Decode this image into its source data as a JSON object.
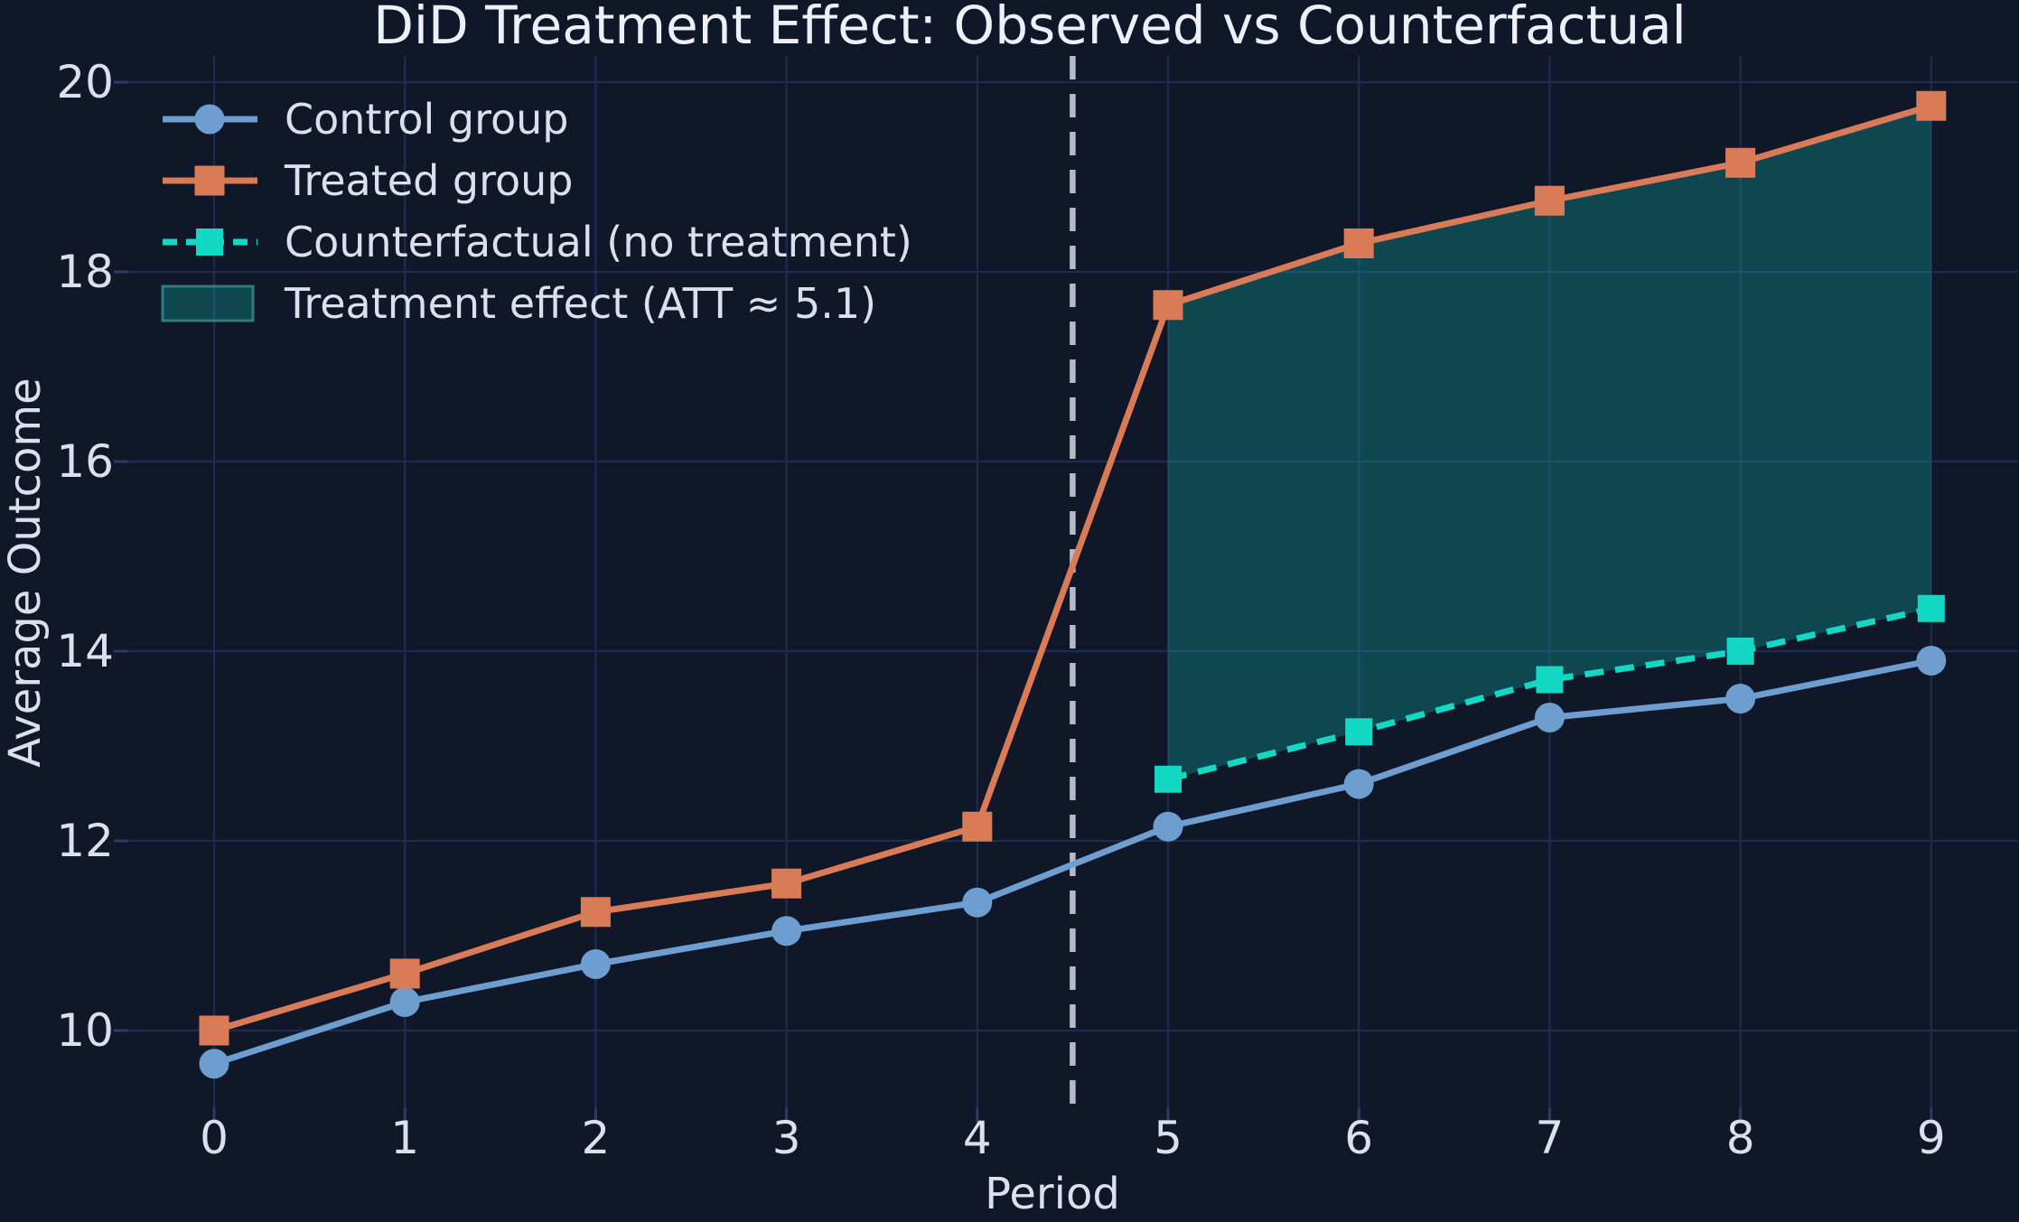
{
  "chart_data": {
    "type": "line",
    "title": "DiD Treatment Effect: Observed vs Counterfactual",
    "xlabel": "Period",
    "ylabel": "Average Outcome",
    "x": [
      0,
      1,
      2,
      3,
      4,
      5,
      6,
      7,
      8,
      9
    ],
    "x_ticks": [
      "0",
      "1",
      "2",
      "3",
      "4",
      "5",
      "6",
      "7",
      "8",
      "9"
    ],
    "y_ticks": [
      10,
      12,
      14,
      16,
      18,
      20
    ],
    "xlim": [
      -0.45,
      9.45
    ],
    "ylim": [
      9.15,
      20.25
    ],
    "grid": true,
    "legend_position": "upper-left",
    "series": [
      {
        "key": "control",
        "name": "Control group",
        "color": "#6e9ecf",
        "marker": "circle",
        "line_style": "solid",
        "values": [
          9.65,
          10.3,
          10.7,
          11.05,
          11.35,
          12.15,
          12.6,
          13.3,
          13.5,
          13.9
        ]
      },
      {
        "key": "treated",
        "name": "Treated group",
        "color": "#d97b57",
        "marker": "square",
        "line_style": "solid",
        "values": [
          10.0,
          10.6,
          11.25,
          11.55,
          12.15,
          17.65,
          18.3,
          18.75,
          19.15,
          19.75
        ]
      },
      {
        "key": "counterfactual",
        "name": "Counterfactual (no treatment)",
        "color": "#13d9c4",
        "marker": "square",
        "line_style": "dashed",
        "values": [
          null,
          null,
          null,
          null,
          null,
          12.65,
          13.15,
          13.7,
          14.0,
          14.45
        ]
      }
    ],
    "treatment_effect": {
      "label": "Treatment effect (ATT ≈ 5.1)",
      "att": 5.1,
      "from_period": 5,
      "to_period": 9,
      "between": [
        "treated",
        "counterfactual"
      ],
      "fill": "rgba(16,158,152,0.36)",
      "edge": "#2e7d7b"
    },
    "treatment_start_line": {
      "x": 4.5,
      "color": "#b6bac6",
      "style": "dashed"
    },
    "colors": {
      "background": "#0f1729",
      "grid": "#202b50",
      "tick": "#2e3a66",
      "text": "#dce0ec",
      "title": "#eef0f7"
    }
  }
}
